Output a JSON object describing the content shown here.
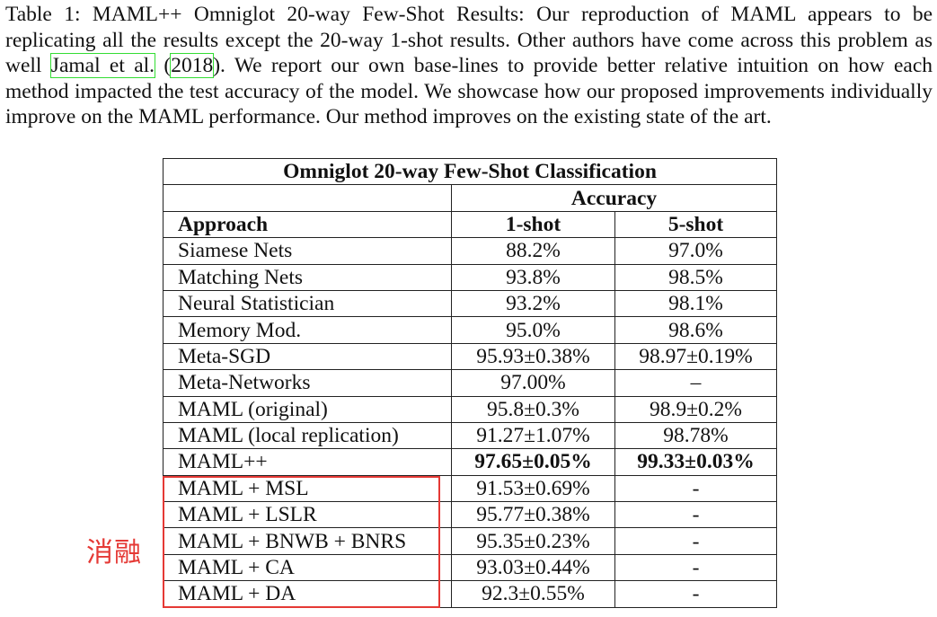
{
  "caption": {
    "prefix": "Table 1: MAML++ Omniglot 20-way Few-Shot Results: Our reproduction of MAML appears to be replicating all the results except the 20-way 1-shot results. Other authors have come across this problem as well ",
    "citation_author": "Jamal et al.",
    "citation_open": " (",
    "citation_year": "2018",
    "suffix": "). We report our own base-lines to provide better relative intuition on how each method impacted the test accuracy of the model. We showcase how our proposed improvements individually improve on the MAML performance. Our method improves on the existing state of the art."
  },
  "table": {
    "title": "Omniglot 20-way Few-Shot Classification",
    "group_header": "Accuracy",
    "col_approach": "Approach",
    "col_1shot": "1-shot",
    "col_5shot": "5-shot",
    "rows": [
      {
        "approach": "Siamese Nets",
        "one_shot": "88.2%",
        "five_shot": "97.0%"
      },
      {
        "approach": "Matching Nets",
        "one_shot": "93.8%",
        "five_shot": "98.5%"
      },
      {
        "approach": "Neural Statistician",
        "one_shot": "93.2%",
        "five_shot": "98.1%"
      },
      {
        "approach": "Memory Mod.",
        "one_shot": "95.0%",
        "five_shot": "98.6%"
      },
      {
        "approach": "Meta-SGD",
        "one_shot": "95.93±0.38%",
        "five_shot": "98.97±0.19%"
      },
      {
        "approach": "Meta-Networks",
        "one_shot": "97.00%",
        "five_shot": "–"
      },
      {
        "approach": "MAML (original)",
        "one_shot": "95.8±0.3%",
        "five_shot": "98.9±0.2%"
      },
      {
        "approach": "MAML (local replication)",
        "one_shot": "91.27±1.07%",
        "five_shot": "98.78%"
      },
      {
        "approach": "MAML++",
        "one_shot": "97.65±0.05%",
        "five_shot": "99.33±0.03%"
      },
      {
        "approach": "MAML + MSL",
        "one_shot": "91.53±0.69%",
        "five_shot": "-"
      },
      {
        "approach": "MAML + LSLR",
        "one_shot": "95.77±0.38%",
        "five_shot": "-"
      },
      {
        "approach": "MAML + BNWB + BNRS",
        "one_shot": "95.35±0.23%",
        "five_shot": "-"
      },
      {
        "approach": "MAML + CA",
        "one_shot": "93.03±0.44%",
        "five_shot": "-"
      },
      {
        "approach": "MAML + DA",
        "one_shot": "92.3±0.55%",
        "five_shot": "-"
      }
    ]
  },
  "annotation": {
    "label": "消融",
    "color": "#e53935"
  }
}
